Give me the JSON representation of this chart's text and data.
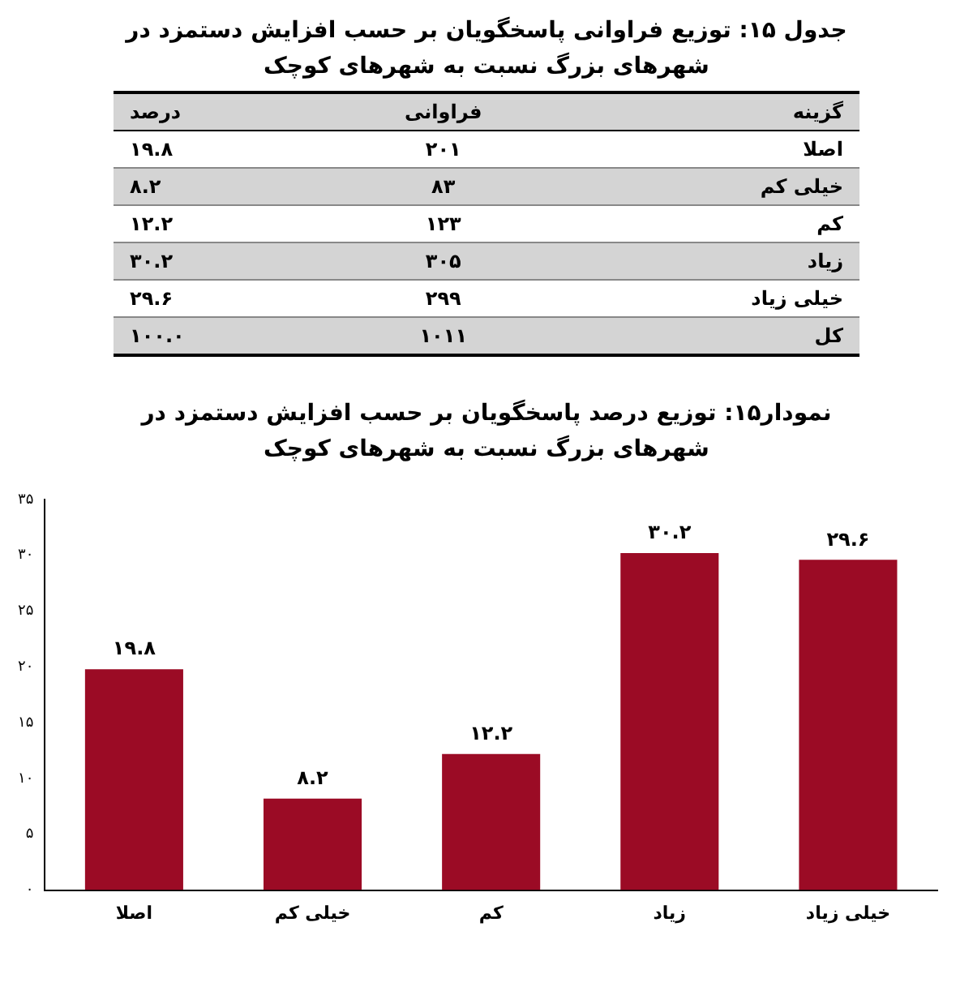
{
  "chart_data": [
    {
      "type": "other",
      "title": "جدول ۱۵: توزیع فراوانی پاسخگویان بر حسب افزایش دستمزد در شهرهای بزرگ نسبت به شهرهای کوچک",
      "annotations": [
        "گزینه",
        "فراوانی",
        "درصد",
        "اصلا",
        "۲۰۱",
        "۱۹.۸",
        "خیلی کم",
        "۸۳",
        "۸.۲",
        "کم",
        "۱۲۳",
        "۱۲.۲",
        "زیاد",
        "۳۰۵",
        "۳۰.۲",
        "خیلی زیاد",
        "۲۹۹",
        "۲۹.۶",
        "کل",
        "۱۰۱۱",
        "۱۰۰.۰"
      ]
    },
    {
      "type": "bar",
      "title": "نمودار۱۵: توزیع درصد پاسخگویان بر حسب افزایش دستمزد در شهرهای بزرگ نسبت به شهرهای کوچک",
      "categories": [
        "اصلا",
        "خیلی کم",
        "کم",
        "زیاد",
        "خیلی زیاد"
      ],
      "values": [
        19.8,
        8.2,
        12.2,
        30.2,
        29.6
      ],
      "value_labels": [
        "۱۹.۸",
        "۸.۲",
        "۱۲.۲",
        "۳۰.۲",
        "۲۹.۶"
      ],
      "color": "#9b0b25",
      "ylim": [
        0,
        35
      ],
      "yticks": [
        {
          "value": 0,
          "label": "۰"
        },
        {
          "value": 5,
          "label": "۵"
        },
        {
          "value": 10,
          "label": "۱۰"
        },
        {
          "value": 15,
          "label": "۱۵"
        },
        {
          "value": 20,
          "label": "۲۰"
        },
        {
          "value": 25,
          "label": "۲۵"
        },
        {
          "value": 30,
          "label": "۳۰"
        },
        {
          "value": 35,
          "label": "۳۵"
        }
      ]
    }
  ]
}
